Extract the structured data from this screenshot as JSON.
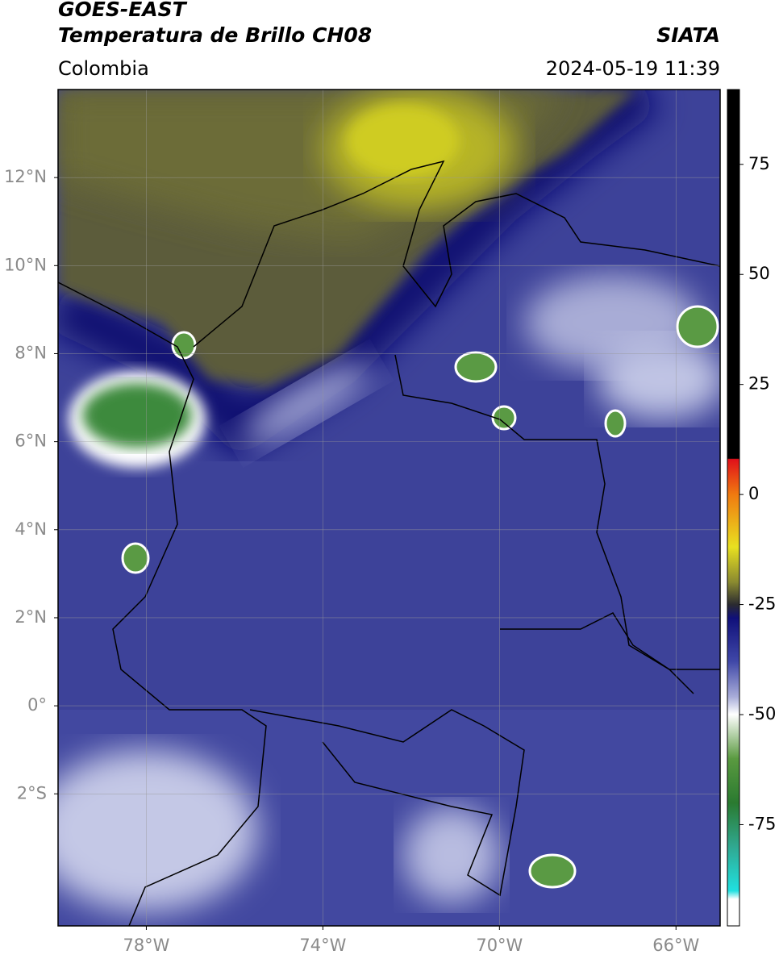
{
  "header": {
    "title": "GOES-EAST",
    "subtitle": "Temperatura de Brillo CH08",
    "source": "SIATA",
    "region": "Colombia",
    "datetime": "2024-05-19 11:39"
  },
  "map": {
    "xlim": [
      -80,
      -65
    ],
    "ylim": [
      -5,
      14
    ],
    "xticks": [
      {
        "value": -78,
        "label": "78°W"
      },
      {
        "value": -74,
        "label": "74°W"
      },
      {
        "value": -70,
        "label": "70°W"
      },
      {
        "value": -66,
        "label": "66°W"
      }
    ],
    "yticks": [
      {
        "value": 12,
        "label": "12°N"
      },
      {
        "value": 10,
        "label": "10°N"
      },
      {
        "value": 8,
        "label": "8°N"
      },
      {
        "value": 6,
        "label": "6°N"
      },
      {
        "value": 4,
        "label": "4°N"
      },
      {
        "value": 2,
        "label": "2°N"
      },
      {
        "value": 0,
        "label": "0°"
      },
      {
        "value": -2,
        "label": "2°S"
      }
    ],
    "grid": true
  },
  "colorbar": {
    "lim": [
      -98,
      92
    ],
    "ticks": [
      75,
      50,
      25,
      0,
      -25,
      -50,
      -75
    ]
  }
}
